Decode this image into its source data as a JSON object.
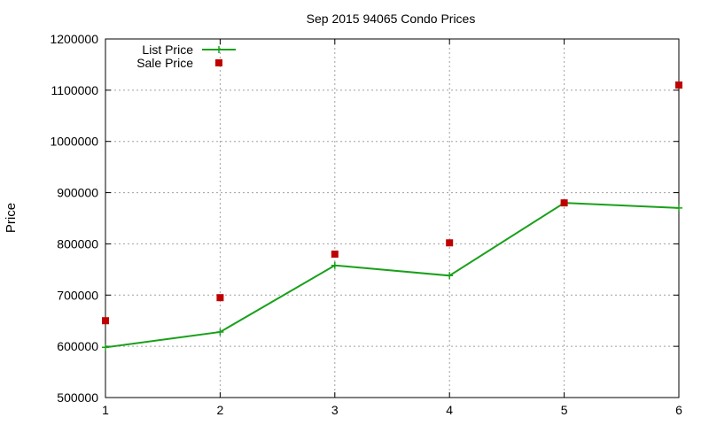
{
  "chart_data": {
    "type": "line",
    "title": "Sep 2015 94065 Condo Prices",
    "xlabel": "",
    "ylabel": "Price",
    "x": [
      1,
      2,
      3,
      4,
      5,
      6
    ],
    "xlim": [
      1,
      6
    ],
    "ylim": [
      500000,
      1200000
    ],
    "xticks": [
      "1",
      "2",
      "3",
      "4",
      "5",
      "6"
    ],
    "yticks": [
      "500000",
      "600000",
      "700000",
      "800000",
      "900000",
      "1000000",
      "1100000",
      "1200000"
    ],
    "grid": true,
    "legend_position": "top-left",
    "series": [
      {
        "name": "List Price",
        "style": "line-with-plus-markers",
        "color": "#1aa01a",
        "values": [
          598000,
          628000,
          758000,
          738000,
          880000,
          870000
        ]
      },
      {
        "name": "Sale Price",
        "style": "square-markers",
        "color": "#c00000",
        "values": [
          650000,
          695000,
          780000,
          802000,
          880000,
          1110000
        ]
      }
    ]
  }
}
